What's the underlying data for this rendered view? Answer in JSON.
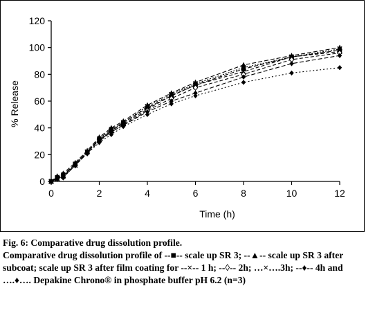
{
  "chart_data": {
    "type": "line",
    "xlabel": "Time (h)",
    "ylabel": "% Release",
    "xlim": [
      0,
      12
    ],
    "ylim": [
      0,
      120
    ],
    "xticks": [
      0,
      2,
      4,
      6,
      8,
      10,
      12
    ],
    "yticks": [
      0,
      20,
      40,
      60,
      80,
      100,
      120
    ],
    "grid": false,
    "x": [
      0,
      0.25,
      0.5,
      1,
      1.5,
      2,
      2.5,
      3,
      4,
      5,
      6,
      8,
      10,
      12
    ],
    "series": [
      {
        "values": [
          0,
          3,
          5,
          13,
          22,
          32,
          39,
          44,
          55,
          64,
          72,
          84,
          93,
          98
        ],
        "marker": "square",
        "dash": "6 3"
      },
      {
        "values": [
          0,
          4,
          6,
          14,
          23,
          33,
          40,
          45,
          57,
          66,
          74,
          87,
          94,
          100
        ],
        "marker": "triangle",
        "dash": "6 3"
      },
      {
        "values": [
          0,
          2,
          4,
          12,
          22,
          31,
          38,
          43,
          54,
          64,
          72,
          82,
          93,
          97
        ],
        "marker": "cross",
        "dash": "5 3"
      },
      {
        "values": [
          0,
          2,
          3,
          12,
          21,
          30,
          37,
          42,
          53,
          62,
          70,
          80,
          91,
          96
        ],
        "marker": "diamond-open",
        "dash": "5 3"
      },
      {
        "values": [
          0,
          2,
          4,
          13,
          22,
          31,
          38,
          44,
          56,
          65,
          73,
          85,
          93,
          99
        ],
        "marker": "cross",
        "dash": "2 2"
      },
      {
        "values": [
          0,
          2,
          4,
          13,
          22,
          31,
          37,
          42,
          52,
          60,
          66,
          78,
          88,
          94
        ],
        "marker": "diamond",
        "dash": "6 3"
      },
      {
        "values": [
          0,
          2,
          3,
          12,
          21,
          29,
          35,
          41,
          50,
          58,
          64,
          74,
          81,
          85
        ],
        "marker": "diamond",
        "dash": "2 3"
      }
    ]
  },
  "caption": {
    "title": "Fig. 6: Comparative drug dissolution profile.",
    "body": "Comparative drug dissolution profile of --■-- scale up SR 3; --▲-- scale up SR 3 after subcoat; scale up SR 3 after film coating for --×-- 1 h; --◊-- 2h; …×….3h; --♦-- 4h and ….♦…. Depakine Chrono® in phosphate buffer pH 6.2 (n=3)"
  }
}
